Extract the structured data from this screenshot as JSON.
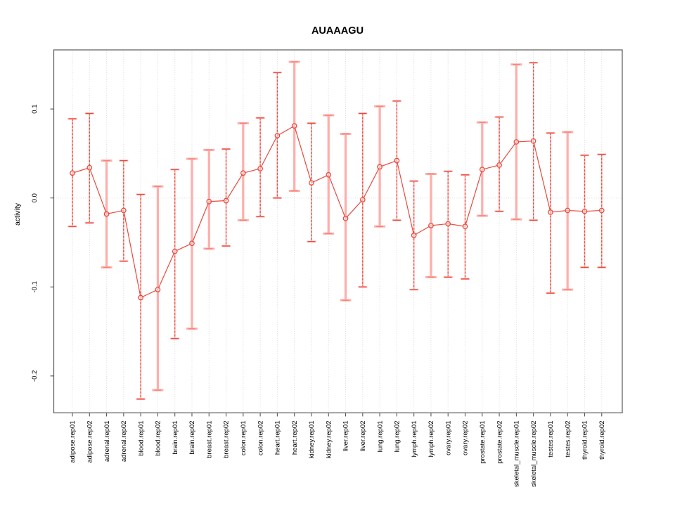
{
  "colors": {
    "red": "#e8493d",
    "pink": "#ffaeaa",
    "cap": "#f5837a",
    "grid": "#dadada",
    "axis": "#595959",
    "text": "#000000"
  },
  "chart_data": {
    "type": "line",
    "marker": "open-circle",
    "error_bars": true,
    "title": "AUAAAGU",
    "xlabel": "",
    "ylabel": "activity",
    "ylim": [
      -0.242,
      0.166
    ],
    "grid": "dotted vertical line at each category; dotted horizontal line at y=0",
    "legend": "none",
    "yticks": [
      {
        "v": 0.1,
        "label": "0.1"
      },
      {
        "v": 0.0,
        "label": "0.0"
      },
      {
        "v": -0.1,
        "label": "-0.1"
      },
      {
        "v": -0.2,
        "label": "-0.2"
      }
    ],
    "categories": [
      "adipose.rep01",
      "adipose.rep02",
      "adrenal.rep01",
      "adrenal.rep02",
      "blood.rep01",
      "blood.rep02",
      "brain.rep01",
      "brain.rep02",
      "breast.rep01",
      "breast.rep02",
      "colon.rep01",
      "colon.rep02",
      "heart.rep01",
      "heart.rep02",
      "kidney.rep01",
      "kidney.rep02",
      "liver.rep01",
      "liver.rep02",
      "lung.rep01",
      "lung.rep02",
      "lymph.rep01",
      "lymph.rep02",
      "ovary.rep01",
      "ovary.rep02",
      "prostate.rep01",
      "prostate.rep02",
      "skeletal_muscle.rep01",
      "skeletal_muscle.rep02",
      "testes.rep01",
      "testes.rep02",
      "thyroid.rep01",
      "thyroid.rep02"
    ],
    "series": [
      {
        "name": "activity",
        "values": [
          0.028,
          0.034,
          -0.018,
          -0.014,
          -0.112,
          -0.103,
          -0.06,
          -0.051,
          -0.004,
          -0.003,
          0.028,
          0.033,
          0.07,
          0.081,
          0.017,
          0.026,
          -0.023,
          -0.002,
          0.035,
          0.042,
          -0.042,
          -0.031,
          -0.029,
          -0.032,
          0.032,
          0.037,
          0.063,
          0.064,
          -0.016,
          -0.014,
          -0.015,
          -0.014
        ]
      }
    ],
    "error_low": [
      -0.032,
      -0.028,
      -0.078,
      -0.071,
      -0.226,
      -0.216,
      -0.158,
      -0.147,
      -0.057,
      -0.054,
      -0.025,
      -0.021,
      0.0,
      0.008,
      -0.049,
      -0.04,
      -0.115,
      -0.1,
      -0.032,
      -0.025,
      -0.103,
      -0.089,
      -0.089,
      -0.091,
      -0.02,
      -0.015,
      -0.024,
      -0.025,
      -0.107,
      -0.103,
      -0.078,
      -0.078
    ],
    "error_high": [
      0.089,
      0.095,
      0.042,
      0.042,
      0.004,
      0.013,
      0.032,
      0.044,
      0.054,
      0.055,
      0.084,
      0.09,
      0.141,
      0.153,
      0.084,
      0.093,
      0.072,
      0.095,
      0.103,
      0.109,
      0.019,
      0.027,
      0.03,
      0.026,
      0.085,
      0.091,
      0.15,
      0.152,
      0.073,
      0.074,
      0.048,
      0.049
    ],
    "bar_styles": [
      "dashed",
      "dashed",
      "solid",
      "dashed",
      "dashed",
      "solid",
      "dashed",
      "solid",
      "solid",
      "dashed",
      "solid",
      "dashed",
      "dashed",
      "solid",
      "dashed",
      "solid",
      "solid",
      "dashed",
      "solid",
      "dashed",
      "dashed",
      "solid",
      "dashed",
      "dashed",
      "solid",
      "dashed",
      "solid",
      "dashed",
      "dashed",
      "solid",
      "dashed",
      "dashed"
    ]
  }
}
